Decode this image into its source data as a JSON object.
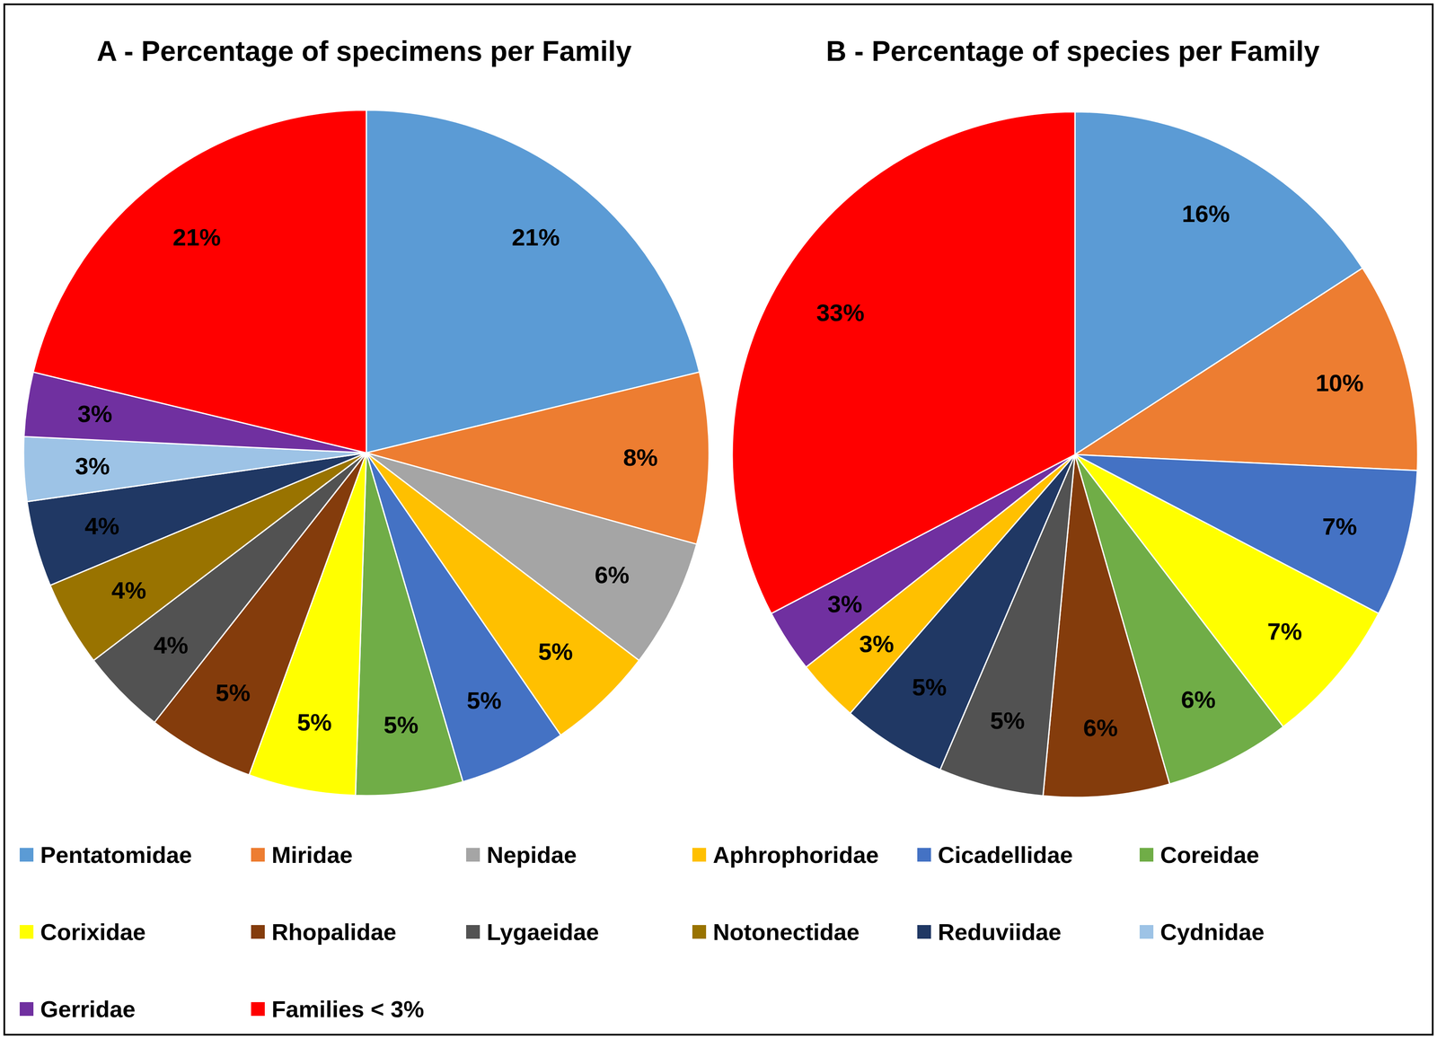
{
  "chart_data": [
    {
      "type": "pie",
      "title": "A - Percentage of specimens per Family",
      "categories": [
        "Pentatomidae",
        "Miridae",
        "Nepidae",
        "Aphrophoridae",
        "Cicadellidae",
        "Coreidae",
        "Corixidae",
        "Rhopalidae",
        "Lygaeidae",
        "Notonectidae",
        "Reduviidae",
        "Cydnidae",
        "Gerridae",
        "Families < 3%"
      ],
      "values": [
        21,
        8,
        6,
        5,
        5,
        5,
        5,
        5,
        4,
        4,
        4,
        3,
        3,
        21
      ],
      "value_labels": [
        "21%",
        "8%",
        "6%",
        "5%",
        "5%",
        "5%",
        "5%",
        "5%",
        "4%",
        "4%",
        "4%",
        "3%",
        "3%",
        "21%"
      ],
      "colors": [
        "#5B9BD5",
        "#ED7D31",
        "#A5A5A5",
        "#FFC000",
        "#4472C4",
        "#70AD47",
        "#FFFF00",
        "#843C0C",
        "#525252",
        "#997300",
        "#203864",
        "#9DC3E6",
        "#7030A0",
        "#FF0000"
      ],
      "data_labels": true,
      "legend": "bottom"
    },
    {
      "type": "pie",
      "title": "B - Percentage of species per Family",
      "categories": [
        "Pentatomidae",
        "Miridae",
        "Cicadellidae",
        "Corixidae",
        "Coreidae",
        "Rhopalidae",
        "Lygaeidae",
        "Reduviidae",
        "Aphrophoridae",
        "Gerridae",
        "Families < 3%"
      ],
      "values": [
        16,
        10,
        7,
        7,
        6,
        6,
        5,
        5,
        3,
        3,
        33
      ],
      "value_labels": [
        "16%",
        "10%",
        "7%",
        "7%",
        "6%",
        "6%",
        "5%",
        "5%",
        "3%",
        "3%",
        "33%"
      ],
      "colors": [
        "#5B9BD5",
        "#ED7D31",
        "#4472C4",
        "#FFFF00",
        "#70AD47",
        "#843C0C",
        "#525252",
        "#203864",
        "#FFC000",
        "#7030A0",
        "#FF0000"
      ],
      "data_labels": true
    }
  ]
}
